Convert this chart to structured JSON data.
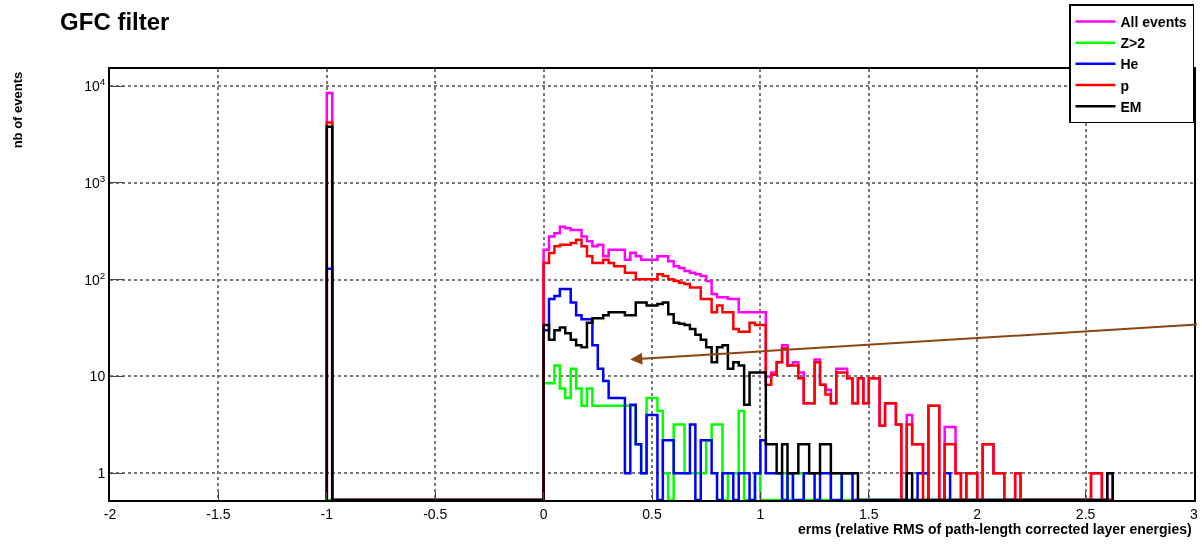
{
  "chart_data": {
    "type": "histogram",
    "title": "GFC filter",
    "xlabel": "erms (relative RMS of path-length corrected layer energies)",
    "ylabel": "nb of events",
    "bins": [
      -1,
      -0.975,
      0,
      0.025,
      0.05,
      0.075,
      0.1,
      0.125,
      0.15,
      0.175,
      0.2,
      0.225,
      0.25,
      0.275,
      0.3,
      0.325,
      0.35,
      0.375,
      0.4,
      0.425,
      0.45,
      0.475,
      0.5,
      0.525,
      0.55,
      0.575,
      0.6,
      0.625,
      0.65,
      0.675,
      0.7,
      0.725,
      0.75,
      0.775,
      0.8,
      0.825,
      0.85,
      0.875,
      0.9,
      0.925,
      0.95,
      0.975,
      1,
      1.025,
      1.05,
      1.075,
      1.1,
      1.125,
      1.15,
      1.175,
      1.2,
      1.225,
      1.25,
      1.275,
      1.3,
      1.325,
      1.35,
      1.375,
      1.4,
      1.425,
      1.45,
      1.475,
      1.5,
      1.525,
      1.55,
      1.575,
      1.6,
      1.625,
      1.65,
      1.675,
      1.7,
      1.725,
      1.75,
      1.775,
      1.8,
      1.825,
      1.85,
      1.875,
      1.9,
      1.925,
      1.95,
      1.975,
      2,
      2.025,
      2.05,
      2.075,
      2.1,
      2.125,
      2.15,
      2.175,
      2.2,
      2.225,
      2.25,
      2.275,
      2.3,
      2.325,
      2.35,
      2.375,
      2.4,
      2.425,
      2.45,
      2.475,
      2.5,
      2.525,
      2.55,
      2.575,
      2.6,
      2.625
    ],
    "series": [
      {
        "name": "All events",
        "color": "#ff00ff",
        "values": [
          8500,
          null,
          204,
          279,
          302,
          353,
          340,
          326,
          326,
          279,
          250,
          221,
          230,
          175,
          204,
          204,
          204,
          161,
          190,
          175,
          161,
          161,
          161,
          175,
          175,
          155,
          138,
          132,
          123,
          118,
          114,
          109,
          97,
          71,
          66,
          66,
          63,
          63,
          46,
          46,
          46,
          46,
          46,
          10,
          11,
          14,
          21,
          13,
          14,
          11,
          5.3,
          5.3,
          15,
          8.2,
          7.3,
          5.3,
          12,
          12,
          9.6,
          5.3,
          9.6,
          5.3,
          9.6,
          9.6,
          3.1,
          5.3,
          5.3,
          3.2,
          null,
          4,
          2,
          2,
          1,
          5,
          5,
          null,
          3,
          3,
          1,
          null,
          1,
          1,
          null,
          2,
          2,
          1,
          1,
          null,
          null,
          1,
          null,
          null,
          null,
          null,
          null,
          null,
          null,
          null,
          null,
          null,
          null,
          null,
          null,
          1,
          1,
          null,
          1
        ]
      },
      {
        "name": "Z>2",
        "color": "#00ff00",
        "values": [
          null,
          null,
          8.5,
          8.5,
          13,
          7.5,
          6,
          12,
          7.5,
          5,
          7.5,
          5,
          5,
          5,
          5,
          5,
          5,
          5,
          5,
          2,
          1,
          6,
          6,
          4.4,
          1,
          null,
          3.2,
          3.2,
          1,
          1,
          1,
          1,
          2.2,
          3.2,
          3.2,
          null,
          1,
          1,
          4.4,
          null,
          null,
          1,
          null,
          null,
          null,
          null,
          1,
          null,
          1,
          1,
          null,
          null,
          null,
          null,
          null,
          1,
          1,
          null,
          null,
          null,
          null,
          null,
          null,
          null,
          null,
          null,
          null,
          null,
          null,
          null,
          null,
          null,
          null,
          null,
          null,
          null,
          null,
          null,
          null,
          null,
          null,
          null,
          null,
          null,
          null,
          null,
          null,
          null,
          null,
          null,
          null,
          null,
          null,
          null,
          null,
          null,
          null,
          null,
          null,
          null,
          null,
          null,
          null,
          null,
          null,
          null,
          null
        ]
      },
      {
        "name": "He",
        "color": "#0000ff",
        "values": [
          130,
          null,
          30,
          63,
          68,
          80,
          80,
          58,
          43,
          39,
          39,
          21,
          12,
          9,
          6,
          6,
          6,
          1,
          5.1,
          2,
          1,
          4,
          4,
          null,
          2.2,
          2.2,
          1,
          1,
          1,
          3.2,
          null,
          2.2,
          2.2,
          1,
          null,
          1,
          1,
          null,
          1,
          1,
          null,
          1,
          2.2,
          1,
          1,
          1,
          null,
          1,
          null,
          null,
          1,
          1,
          null,
          1,
          1,
          null,
          null,
          1,
          1,
          null,
          null,
          null,
          null,
          null,
          null,
          null,
          null,
          null,
          null,
          null,
          null,
          1,
          1,
          null,
          null,
          null,
          1,
          null,
          null,
          null,
          null,
          null,
          null,
          null,
          null,
          null,
          null,
          null,
          null,
          null,
          null,
          null,
          null,
          null,
          null,
          null,
          null,
          null,
          null,
          null,
          null,
          null,
          null,
          null,
          null,
          null,
          null
        ]
      },
      {
        "name": "p",
        "color": "#ff0000",
        "values": [
          4200,
          null,
          149,
          189,
          221,
          230,
          230,
          239,
          258,
          221,
          175,
          149,
          149,
          161,
          149,
          138,
          138,
          118,
          118,
          101,
          101,
          101,
          101,
          114,
          109,
          101,
          97,
          93,
          90,
          83,
          83,
          63,
          63,
          46,
          54,
          46,
          46,
          31,
          29,
          29,
          36,
          34,
          34,
          8.2,
          10.4,
          14,
          19.5,
          13,
          13,
          9.6,
          5.3,
          5.3,
          14,
          8.2,
          6.5,
          5.3,
          11,
          11,
          9.6,
          5.3,
          9.6,
          5.3,
          9.6,
          9.6,
          3.1,
          5.3,
          5.3,
          3.2,
          null,
          3.2,
          2,
          2,
          null,
          5,
          5,
          null,
          2,
          2,
          1,
          null,
          1,
          1,
          null,
          2,
          2,
          1,
          1,
          null,
          null,
          1,
          null,
          null,
          null,
          null,
          null,
          null,
          null,
          null,
          null,
          null,
          null,
          null,
          null,
          1,
          1,
          null,
          null
        ]
      },
      {
        "name": "EM",
        "color": "#000000",
        "values": [
          3800,
          null,
          34,
          24,
          30,
          32,
          28,
          24,
          21,
          20,
          36,
          40,
          40,
          43,
          46,
          46,
          46,
          43,
          43,
          58,
          58,
          54,
          54,
          56,
          58,
          44,
          36,
          35,
          34,
          31,
          27,
          24,
          20,
          14,
          20,
          21,
          12,
          14,
          13,
          5.1,
          11,
          11,
          11,
          2,
          2,
          1,
          2,
          1,
          1,
          2,
          2,
          1,
          1,
          2,
          2,
          1,
          1,
          1,
          1,
          1,
          null,
          null,
          null,
          null,
          null,
          null,
          null,
          null,
          null,
          1,
          null,
          null,
          null,
          null,
          null,
          null,
          null,
          null,
          null,
          null,
          null,
          null,
          null,
          null,
          null,
          null,
          null,
          null,
          null,
          null,
          null,
          null,
          null,
          null,
          null,
          null,
          null,
          null,
          null,
          null,
          null,
          null,
          null,
          null,
          null,
          null,
          1
        ]
      }
    ],
    "xlim": [
      -2,
      3
    ],
    "xticks": [
      -2,
      -1.5,
      -1,
      -0.5,
      0,
      0.5,
      1,
      1.5,
      2,
      2.5,
      3
    ],
    "ylim": [
      0.53,
      15000
    ],
    "yticks": [
      1,
      10,
      {
        "value": 100,
        "label": "10$^{2}$"
      },
      {
        "value": 1000,
        "label": "10$^{3}$"
      },
      {
        "value": 10000,
        "label": "10$^{4}$"
      }
    ],
    "log": true,
    "grid": true,
    "legend": "top right"
  }
}
